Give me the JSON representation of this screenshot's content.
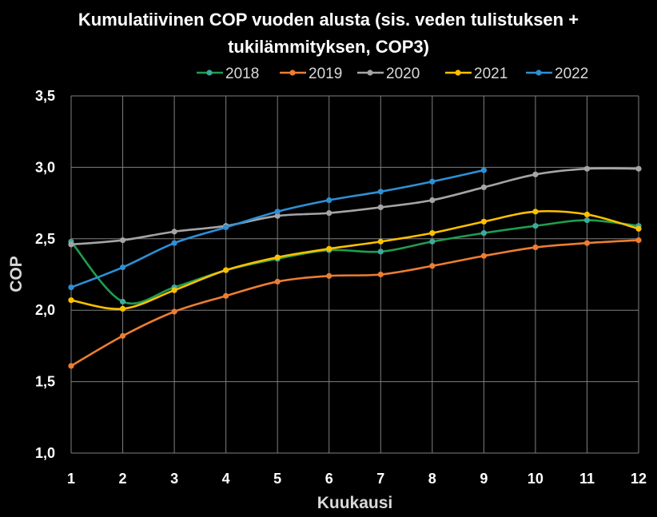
{
  "chart_data": {
    "type": "line",
    "title_lines": [
      "Kumulatiivinen COP vuoden alusta (sis. veden tulistuksen +",
      "tukilämmityksen, COP3)"
    ],
    "xlabel": "Kuukausi",
    "ylabel": "COP",
    "x": [
      1,
      2,
      3,
      4,
      5,
      6,
      7,
      8,
      9,
      10,
      11,
      12
    ],
    "xlim": [
      1,
      12
    ],
    "ylim": [
      1.0,
      3.5
    ],
    "yticks": [
      "1,0",
      "1,5",
      "2,0",
      "2,5",
      "3,0",
      "3,5"
    ],
    "ytick_values": [
      1.0,
      1.5,
      2.0,
      2.5,
      3.0,
      3.5
    ],
    "grid": true,
    "legend_position": "top",
    "smooth": true,
    "series": [
      {
        "name": "2018",
        "color": "#1e9e4f",
        "marker_color": "#40a89a",
        "values": [
          2.48,
          2.06,
          2.16,
          2.28,
          2.36,
          2.42,
          2.41,
          2.48,
          2.54,
          2.59,
          2.63,
          2.59
        ]
      },
      {
        "name": "2019",
        "color": "#ed7d31",
        "marker_color": "#ed7d31",
        "values": [
          1.61,
          1.82,
          1.99,
          2.1,
          2.2,
          2.24,
          2.25,
          2.31,
          2.38,
          2.44,
          2.47,
          2.49
        ]
      },
      {
        "name": "2020",
        "color": "#a5a5a5",
        "marker_color": "#a5a5a5",
        "values": [
          2.46,
          2.49,
          2.55,
          2.59,
          2.66,
          2.68,
          2.72,
          2.77,
          2.86,
          2.95,
          2.99,
          2.99
        ]
      },
      {
        "name": "2021",
        "color": "#ffc000",
        "marker_color": "#ffc000",
        "values": [
          2.07,
          2.01,
          2.14,
          2.28,
          2.37,
          2.43,
          2.48,
          2.54,
          2.62,
          2.69,
          2.67,
          2.57
        ]
      },
      {
        "name": "2022",
        "color": "#2e8fd6",
        "marker_color": "#2e8fd6",
        "values": [
          2.16,
          2.3,
          2.47,
          2.58,
          2.69,
          2.77,
          2.83,
          2.9,
          2.98,
          null,
          null,
          null
        ]
      }
    ]
  }
}
